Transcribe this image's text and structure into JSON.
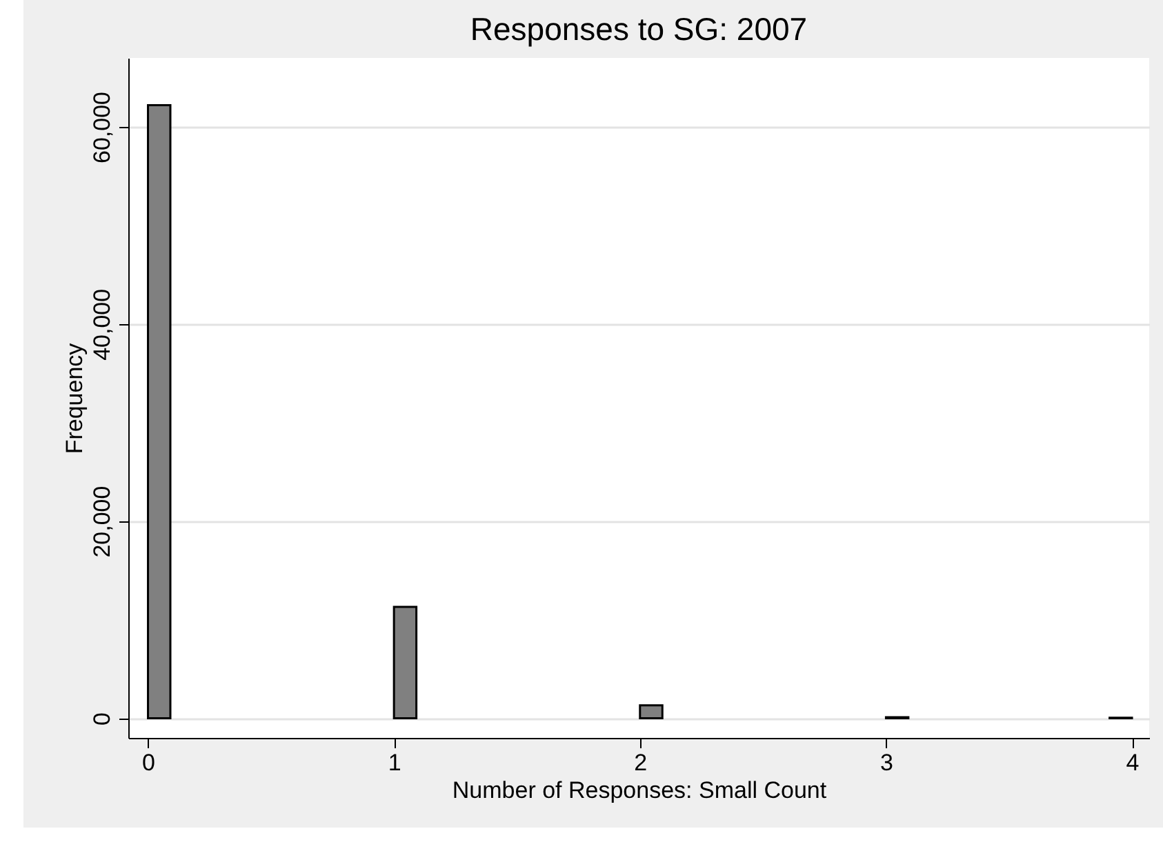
{
  "chart_data": {
    "type": "histogram",
    "title": "Responses to SG: 2007",
    "xlabel": "Number of Responses: Small Count",
    "ylabel": "Frequency",
    "bins": [
      0,
      0.091,
      0.182,
      0.273,
      0.364,
      0.455,
      0.545,
      0.636,
      0.727,
      0.818,
      0.909,
      1,
      1.091,
      1.182,
      1.273,
      1.364,
      1.455,
      1.545,
      1.636,
      1.727,
      1.818,
      1.909,
      2,
      2.091,
      2.182,
      2.273,
      2.364,
      2.455,
      2.545,
      2.636,
      2.727,
      2.818,
      2.909,
      3,
      3.091,
      3.182,
      3.273,
      3.364,
      3.455,
      3.545,
      3.636,
      3.727,
      3.818,
      3.909,
      4
    ],
    "values": [
      62200,
      0,
      0,
      0,
      0,
      0,
      0,
      0,
      0,
      0,
      0,
      11300,
      0,
      0,
      0,
      0,
      0,
      0,
      0,
      0,
      0,
      0,
      1300,
      0,
      0,
      0,
      0,
      0,
      0,
      0,
      0,
      0,
      0,
      100,
      0,
      0,
      0,
      0,
      0,
      0,
      0,
      0,
      0,
      50
    ],
    "color": "#808080",
    "xlim": [
      -0.08,
      4.07
    ],
    "xticks": [
      0,
      1,
      2,
      3,
      4
    ],
    "ylim": [
      -2000,
      67000
    ],
    "yticks": [
      0,
      {
        "value": 20000,
        "label": "20,000"
      },
      {
        "value": 40000,
        "label": "40,000"
      },
      {
        "value": 60000,
        "label": "60,000"
      }
    ],
    "grid": "y"
  }
}
